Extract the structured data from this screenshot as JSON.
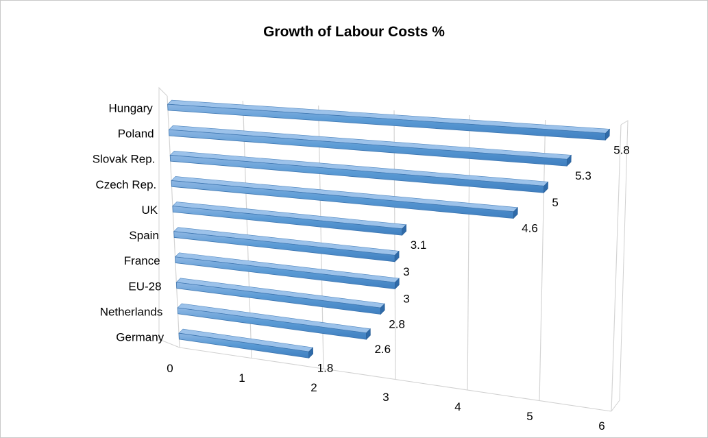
{
  "chart_data": {
    "type": "bar",
    "orientation": "horizontal",
    "style": "3d",
    "title": "Growth of Labour Costs %",
    "xlabel": "",
    "ylabel": "",
    "categories": [
      "Hungary",
      "Poland",
      "Slovak Rep.",
      "Czech Rep.",
      "UK",
      "Spain",
      "France",
      "EU-28",
      "Netherlands",
      "Germany"
    ],
    "values": [
      5.8,
      5.3,
      5.0,
      4.6,
      3.1,
      3.0,
      3.0,
      2.8,
      2.6,
      1.8
    ],
    "value_labels": [
      "5.8",
      "5.3",
      "5",
      "4.6",
      "3.1",
      "3",
      "3",
      "2.8",
      "2.6",
      "1.8"
    ],
    "xlim": [
      0,
      6
    ],
    "xticks": [
      "0",
      "1",
      "2",
      "3",
      "4",
      "5",
      "6"
    ],
    "bar_color": "#5b9bd5",
    "grid": true,
    "legend": "none"
  }
}
